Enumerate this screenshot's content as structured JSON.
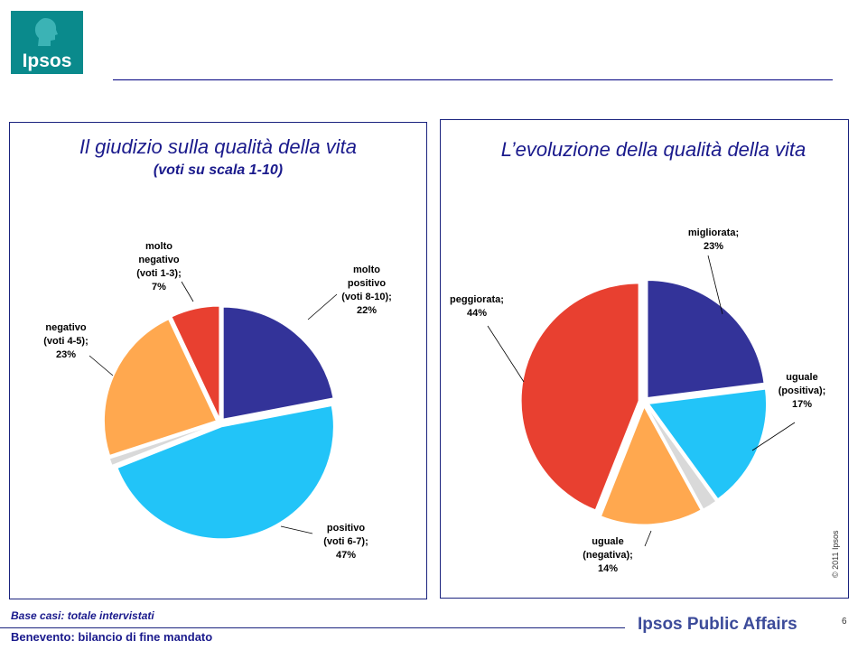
{
  "logo": {
    "text": "Ipsos"
  },
  "chart_data": [
    {
      "type": "pie",
      "title": "Il giudizio sulla qualità della vita",
      "subtitle": "(voti su scala 1-10)",
      "slices": [
        {
          "label": [
            "molto",
            "positivo",
            "(voti 8-10);",
            "22%"
          ],
          "value": 22,
          "color": "#333399"
        },
        {
          "label": [
            "positivo",
            "(voti 6-7);",
            "47%"
          ],
          "value": 47,
          "color": "#22c4f8"
        },
        {
          "label": [],
          "value": 1,
          "color": "#d9d9d9"
        },
        {
          "label": [
            "negativo",
            "(voti 4-5);",
            "23%"
          ],
          "value": 23,
          "color": "#ffa84f"
        },
        {
          "label": [
            "molto",
            "negativo",
            "(voti 1-3);",
            "7%"
          ],
          "value": 7,
          "color": "#e84030"
        }
      ]
    },
    {
      "type": "pie",
      "title": "L’evoluzione della qualità della vita",
      "subtitle": "",
      "slices": [
        {
          "label": [
            "migliorata;",
            "23%"
          ],
          "value": 23,
          "color": "#333399"
        },
        {
          "label": [
            "uguale",
            "(positiva);",
            "17%"
          ],
          "value": 17,
          "color": "#22c4f8"
        },
        {
          "label": [],
          "value": 2,
          "color": "#d9d9d9"
        },
        {
          "label": [
            "uguale",
            "(negativa);",
            "14%"
          ],
          "value": 14,
          "color": "#ffa84f"
        },
        {
          "label": [
            "peggiorata;",
            "44%"
          ],
          "value": 44,
          "color": "#e84030"
        }
      ]
    }
  ],
  "footer": {
    "base_note": "Base casi: totale intervistati",
    "left": "Benevento: bilancio di fine mandato",
    "brand": "Ipsos Public Affairs",
    "page": "6",
    "copyright": "© 2011 Ipsos"
  }
}
